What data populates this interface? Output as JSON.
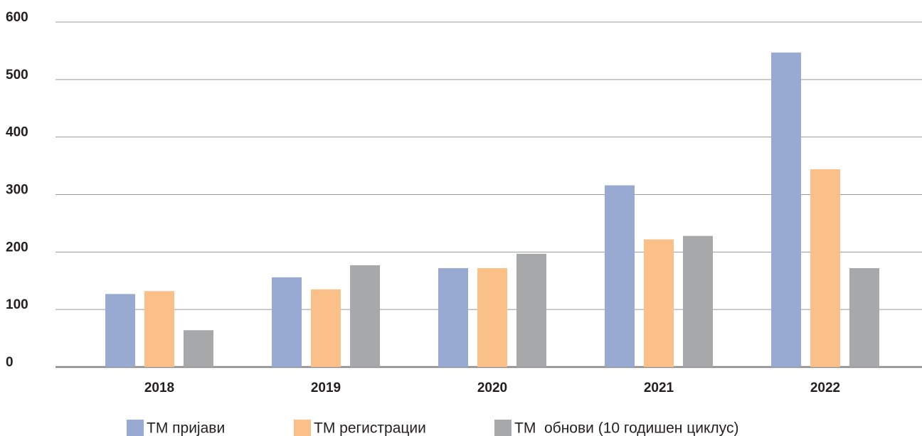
{
  "chart_data": {
    "type": "bar",
    "categories": [
      "2018",
      "2019",
      "2020",
      "2021",
      "2022"
    ],
    "series": [
      {
        "name": "ТМ пријави",
        "color": "#98aad2",
        "values": [
          127,
          156,
          172,
          316,
          547
        ]
      },
      {
        "name": "ТМ регистрации",
        "color": "#fbbf88",
        "values": [
          132,
          135,
          172,
          222,
          344
        ]
      },
      {
        "name": "ТМ  обнови (10 годишен циклус)",
        "color": "#a7a8aa",
        "values": [
          64,
          177,
          197,
          228,
          172
        ]
      }
    ],
    "ylim": [
      0,
      600
    ],
    "yticks": [
      0,
      100,
      200,
      300,
      400,
      500,
      600
    ],
    "grid": true,
    "legend": "bottom"
  }
}
